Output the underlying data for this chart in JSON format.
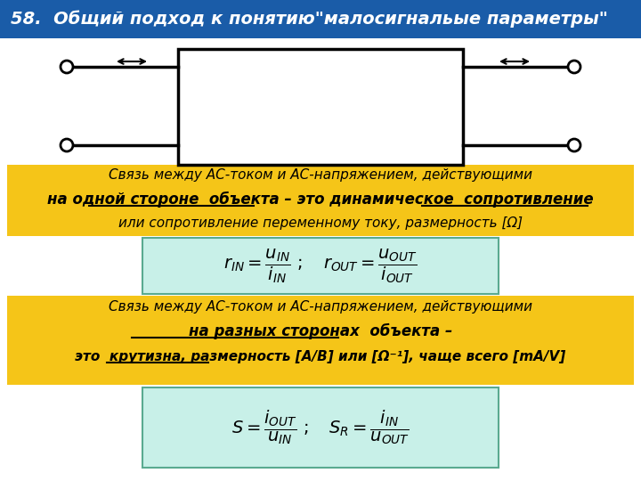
{
  "title": "58.  Общий подход к понятию\"малосигнальые параметры\"",
  "title_bg": "#1a5ca8",
  "title_color": "#ffffff",
  "yellow_bg": "#f5c518",
  "cyan_bg": "#c8f0e8",
  "cyan_border": "#5aaa90",
  "overall_bg": "#ffffff",
  "text1_line1": "Связь между АС-током и АС-напряжением, действующими",
  "text1_line3": "или сопротивление переменному току, размерность [Ω]",
  "text2_line1": "Связь между АС-током и АС-напряжением, действующими"
}
